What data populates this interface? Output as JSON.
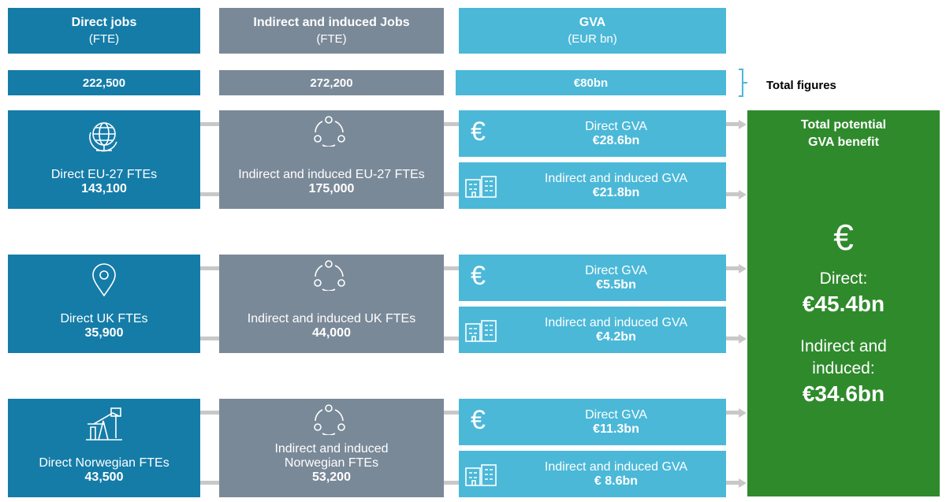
{
  "header": {
    "columns": [
      {
        "title": "Direct jobs",
        "unit": "(FTE)"
      },
      {
        "title": "Indirect and induced Jobs",
        "unit": "(FTE)"
      },
      {
        "title": "GVA",
        "unit": "(EUR bn)"
      }
    ]
  },
  "totals": {
    "values": [
      "222,500",
      "272,200",
      "€80bn"
    ],
    "label": "Total figures"
  },
  "gva_icon": "€",
  "rows": [
    {
      "direct": {
        "label": "Direct  EU-27 FTEs",
        "value": "143,100"
      },
      "indirect": {
        "label": "Indirect and induced EU-27 FTEs",
        "value": "175,000"
      },
      "gva_direct": {
        "label": "Direct GVA",
        "value": "€28.6bn"
      },
      "gva_indirect": {
        "label": "Indirect and induced GVA",
        "value": "€21.8bn"
      }
    },
    {
      "direct": {
        "label": "Direct UK FTEs",
        "value": "35,900"
      },
      "indirect": {
        "label": "Indirect and induced UK FTEs",
        "value": "44,000"
      },
      "gva_direct": {
        "label": "Direct GVA",
        "value": "€5.5bn"
      },
      "gva_indirect": {
        "label": "Indirect and induced GVA",
        "value": "€4.2bn"
      }
    },
    {
      "direct": {
        "label": "Direct Norwegian FTEs",
        "value": "43,500"
      },
      "indirect": {
        "label": "Indirect and induced Norwegian FTEs",
        "value": "53,200"
      },
      "gva_direct": {
        "label": "Direct GVA",
        "value": "€11.3bn"
      },
      "gva_indirect": {
        "label": "Indirect and induced GVA",
        "value": "€ 8.6bn"
      }
    }
  ],
  "benefit": {
    "title": "Total potential GVA benefit",
    "icon": "€",
    "direct_label": "Direct:",
    "direct_value": "€45.4bn",
    "indirect_label": "Indirect and induced:",
    "indirect_value": "€34.6bn"
  }
}
